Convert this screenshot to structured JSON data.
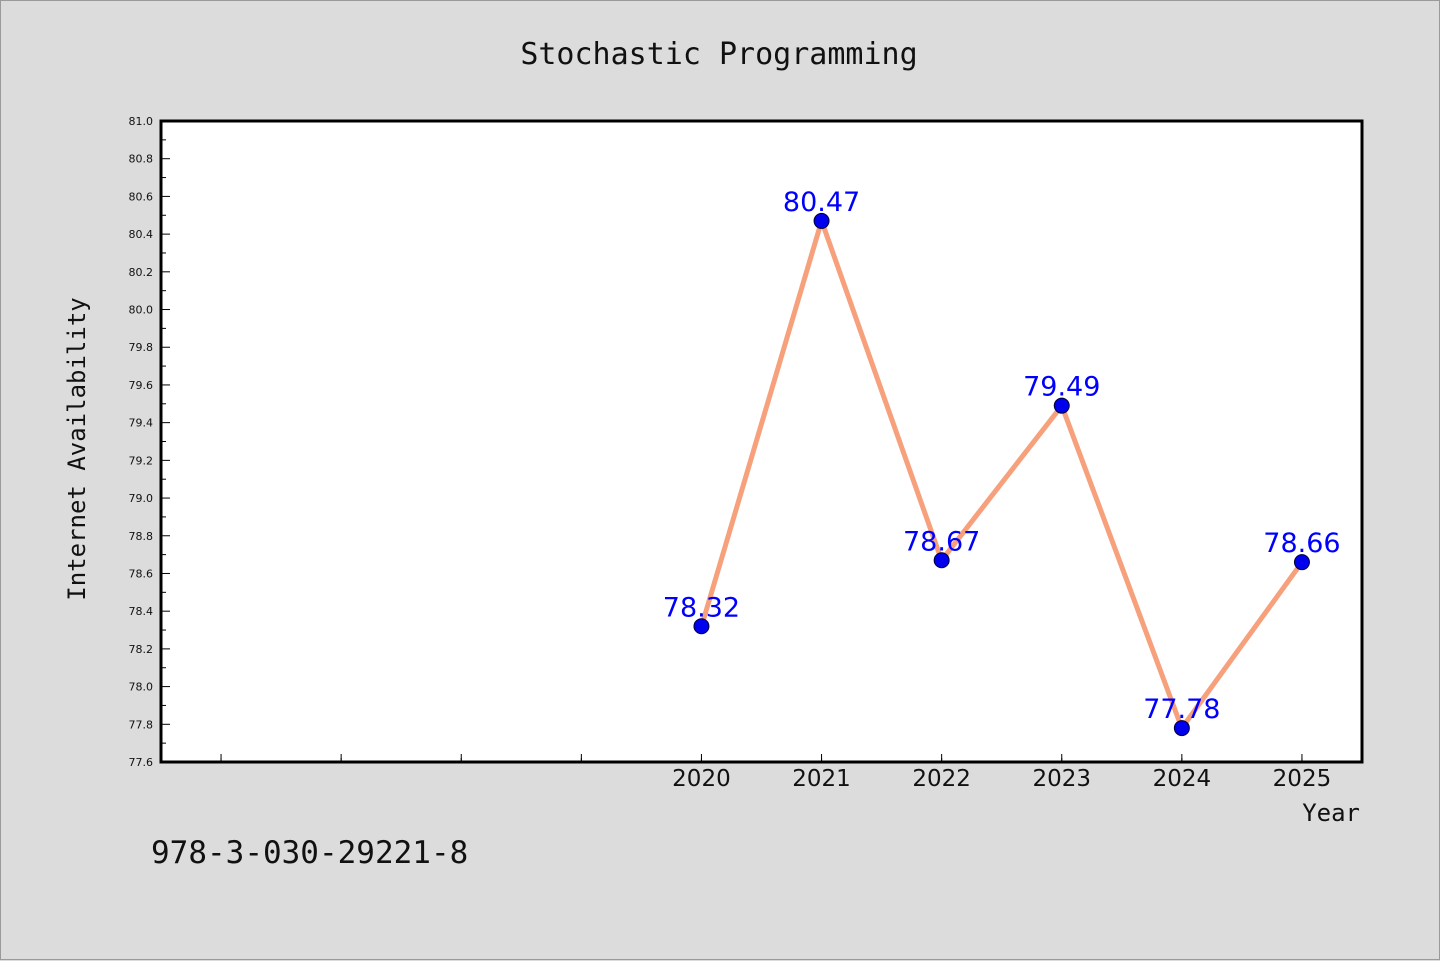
{
  "chart_data": {
    "type": "line",
    "title": "Stochastic Programming",
    "xlabel": "Year",
    "ylabel": "Internet Availability",
    "x": [
      2020,
      2021,
      2022,
      2023,
      2024,
      2025
    ],
    "x_tick_labels": [
      "2020",
      "2021",
      "2022",
      "2023",
      "2024",
      "2025"
    ],
    "xlim": [
      2015.5,
      2025.5
    ],
    "ylim": [
      77.6,
      81.0
    ],
    "y_major_step": 0.2,
    "y_tick_labels": [
      "77.6",
      "77.8",
      "78.0",
      "78.2",
      "78.4",
      "78.6",
      "78.8",
      "79.0",
      "79.2",
      "79.4",
      "79.6",
      "79.8",
      "80.0",
      "80.2",
      "80.4",
      "80.6",
      "80.8",
      "81.0"
    ],
    "series": [
      {
        "values": [
          78.32,
          80.47,
          78.67,
          79.49,
          77.78,
          78.66
        ],
        "data_labels": [
          "78.32",
          "80.47",
          "78.67",
          "79.49",
          "77.78",
          "78.66"
        ],
        "line_color": "#f7a07c",
        "marker_color": "#0000ee"
      }
    ],
    "data_label_color": "#0000ff",
    "grid": false,
    "legend": "none"
  },
  "footer": {
    "isbn": "978-3-030-29221-8"
  }
}
